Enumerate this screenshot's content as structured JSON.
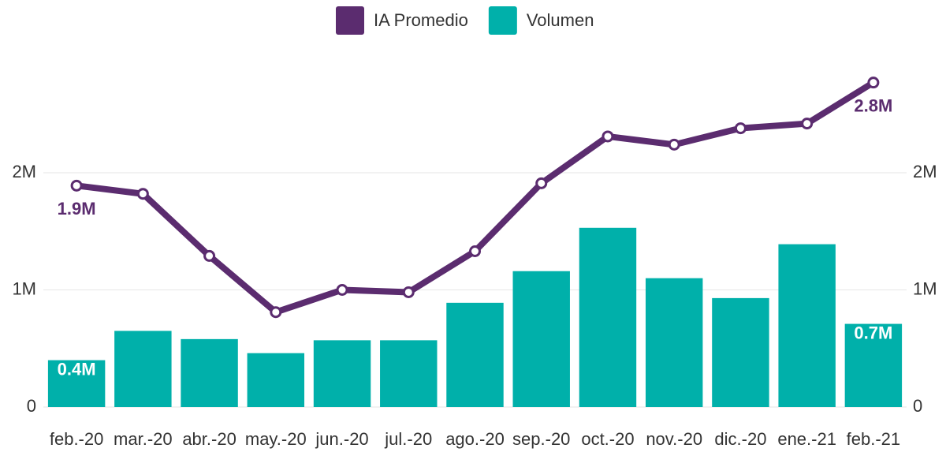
{
  "chart_data": {
    "type": "combo",
    "categories": [
      "feb.-20",
      "mar.-20",
      "abr.-20",
      "may.-20",
      "jun.-20",
      "jul.-20",
      "ago.-20",
      "sep.-20",
      "oct.-20",
      "nov.-20",
      "dic.-20",
      "ene.-21",
      "feb.-21"
    ],
    "series": [
      {
        "name": "IA Promedio",
        "type": "line",
        "axis": "y2",
        "color": "#5b2c6f",
        "values": [
          1890000,
          1820000,
          1290000,
          810000,
          1000000,
          980000,
          1330000,
          1910000,
          2310000,
          2240000,
          2380000,
          2420000,
          2770000
        ],
        "value_labels": [
          "1.9M",
          null,
          null,
          null,
          null,
          null,
          null,
          null,
          null,
          null,
          null,
          null,
          "2.8M"
        ]
      },
      {
        "name": "Volumen",
        "type": "bar",
        "color": "#00b0aa",
        "values": [
          400000,
          650000,
          580000,
          460000,
          570000,
          570000,
          890000,
          1160000,
          1530000,
          1100000,
          930000,
          1390000,
          710000
        ],
        "value_labels": [
          "0.4M",
          null,
          null,
          null,
          null,
          null,
          null,
          null,
          null,
          null,
          null,
          null,
          "0.7M"
        ]
      }
    ],
    "ylim": [
      0,
      3000000
    ],
    "yticks": [
      0,
      {
        "value": 1000000,
        "label": "1M"
      },
      {
        "value": 2000000,
        "label": "2M"
      }
    ],
    "y2lim": [
      0,
      3000000
    ],
    "y2ticks": [
      0,
      {
        "value": 1000000,
        "label": "1M"
      },
      {
        "value": 2000000,
        "label": "2M"
      }
    ],
    "grid": true,
    "legend": "top"
  }
}
